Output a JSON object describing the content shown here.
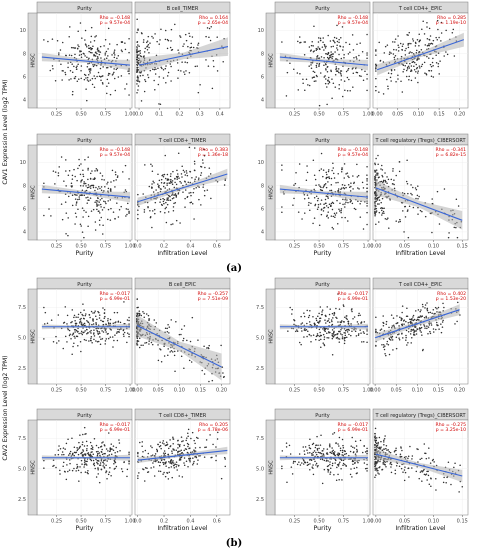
{
  "figure": {
    "label_a": "(a)",
    "label_b": "(b)"
  },
  "chart_data": [
    {
      "type": "scatter",
      "group": "a",
      "gene": "CAV1",
      "row": 0,
      "col": 0,
      "side_label": "HNSC",
      "ylabel": "CAV1 Expression Level (log2 TPM)",
      "xlabel": "",
      "yticks": [
        4,
        6,
        8,
        10
      ],
      "ylim": [
        3.3,
        11.5
      ],
      "left": {
        "strip": "Purity",
        "rho": "Rho = -0.148",
        "p": "p = 9.57e-04",
        "xticks": [
          "0.25",
          "0.50",
          "0.75",
          "1.00"
        ],
        "xlim": [
          0.05,
          1.02
        ],
        "fit": [
          [
            0.1,
            7.7
          ],
          [
            1.0,
            7.0
          ]
        ],
        "band": 0.45,
        "pts": [],
        "n": 240,
        "xdist": "purity",
        "ysd": 1.3
      },
      "right": {
        "strip": "B cell_TIMER",
        "rho": "Rho = 0.164",
        "p": "p = 2.65e-04",
        "xticks": [
          "0.0",
          "0.1",
          "0.2",
          "0.3",
          "0.4"
        ],
        "xlim": [
          -0.02,
          0.45
        ],
        "fit": [
          [
            0.0,
            7.0
          ],
          [
            0.44,
            8.6
          ]
        ],
        "band": 0.8,
        "n": 240,
        "xdist": "left",
        "ysd": 1.3
      }
    },
    {
      "type": "scatter",
      "group": "a",
      "gene": "CAV1",
      "row": 0,
      "col": 1,
      "side_label": "HNSC",
      "ylabel": "",
      "xlabel": "",
      "yticks": [
        4,
        6,
        8,
        10
      ],
      "ylim": [
        3.3,
        11.5
      ],
      "left": {
        "strip": "Purity",
        "rho": "Rho = -0.148",
        "p": "p = 9.57e-04",
        "xticks": [
          "0.25",
          "0.50",
          "0.75",
          "1.00"
        ],
        "xlim": [
          0.05,
          1.02
        ],
        "fit": [
          [
            0.1,
            7.7
          ],
          [
            1.0,
            7.0
          ]
        ],
        "band": 0.45,
        "n": 240,
        "xdist": "purity",
        "ysd": 1.3
      },
      "right": {
        "strip": "T cell CD4+_EPIC",
        "rho": "Rho = 0.285",
        "p": "p = 1.19e-10",
        "xticks": [
          "0.00",
          "0.05",
          "0.10",
          "0.15",
          "0.20"
        ],
        "xlim": [
          -0.01,
          0.22
        ],
        "fit": [
          [
            0.0,
            6.6
          ],
          [
            0.21,
            9.2
          ]
        ],
        "band": 0.6,
        "n": 240,
        "xdist": "mid",
        "ysd": 1.2
      }
    },
    {
      "type": "scatter",
      "group": "a",
      "gene": "CAV1",
      "row": 1,
      "col": 0,
      "side_label": "HNSC",
      "ylabel": "CAV1 Expression Level (log2 TPM)",
      "xlabel": "Infiltration Level",
      "yticks": [
        4,
        6,
        8,
        10
      ],
      "ylim": [
        3.3,
        11.5
      ],
      "left": {
        "strip": "Purity",
        "rho": "Rho = -0.148",
        "p": "p = 9.57e-04",
        "xticks": [
          "0.25",
          "0.50",
          "0.75",
          "1.00"
        ],
        "xlim": [
          0.05,
          1.02
        ],
        "fit": [
          [
            0.1,
            7.7
          ],
          [
            1.0,
            7.0
          ]
        ],
        "band": 0.45,
        "n": 240,
        "xdist": "purity",
        "ysd": 1.3,
        "xlabel": "Purity"
      },
      "right": {
        "strip": "T cell CD8+_TIMER",
        "rho": "Rho = 0.383",
        "p": "p = 1.36e-18",
        "xticks": [
          "0.0",
          "0.2",
          "0.4",
          "0.6"
        ],
        "xlim": [
          -0.02,
          0.7
        ],
        "fit": [
          [
            0.0,
            6.6
          ],
          [
            0.68,
            9.0
          ]
        ],
        "band": 0.45,
        "n": 240,
        "xdist": "mid",
        "ysd": 1.2
      }
    },
    {
      "type": "scatter",
      "group": "a",
      "gene": "CAV1",
      "row": 1,
      "col": 1,
      "side_label": "HNSC",
      "ylabel": "",
      "xlabel": "Infiltration Level",
      "yticks": [
        4,
        6,
        8,
        10
      ],
      "ylim": [
        3.3,
        11.5
      ],
      "left": {
        "strip": "Purity",
        "rho": "Rho = -0.148",
        "p": "p = 9.57e-04",
        "xticks": [
          "0.25",
          "0.50",
          "0.75",
          "1.00"
        ],
        "xlim": [
          0.05,
          1.02
        ],
        "fit": [
          [
            0.1,
            7.7
          ],
          [
            1.0,
            7.0
          ]
        ],
        "band": 0.45,
        "n": 240,
        "xdist": "purity",
        "ysd": 1.3,
        "xlabel": "Purity"
      },
      "right": {
        "strip": "T cell regulatory (Tregs)_CIBERSORT",
        "rho": "Rho = -0.341",
        "p": "p = 6.82e-15",
        "xticks": [
          "0.00",
          "0.05",
          "0.10",
          "0.15"
        ],
        "xlim": [
          -0.005,
          0.16
        ],
        "fit": [
          [
            0.0,
            7.8
          ],
          [
            0.15,
            5.0
          ]
        ],
        "band": 0.8,
        "n": 240,
        "xdist": "left",
        "ysd": 1.2
      }
    },
    {
      "type": "scatter",
      "group": "b",
      "gene": "CAV2",
      "row": 0,
      "col": 0,
      "side_label": "HNSC",
      "ylabel": "CAV2 Expression Level (log2 TPM)",
      "xlabel": "",
      "yticks": [
        2.5,
        5.0,
        7.5
      ],
      "ylim": [
        1.2,
        9.0
      ],
      "left": {
        "strip": "Purity",
        "rho": "Rho = -0.017",
        "p": "p = 6.99e-01",
        "xticks": [
          "0.25",
          "0.50",
          "0.75",
          "1.00"
        ],
        "xlim": [
          0.05,
          1.02
        ],
        "fit": [
          [
            0.1,
            5.9
          ],
          [
            1.0,
            5.9
          ]
        ],
        "band": 0.25,
        "n": 260,
        "xdist": "purity",
        "ysd": 0.75
      },
      "right": {
        "strip": "B cell_EPIC",
        "rho": "Rho = -0.257",
        "p": "p = 7.51e-09",
        "xticks": [
          "0.00",
          "0.05",
          "0.10",
          "0.15",
          "0.20"
        ],
        "xlim": [
          -0.005,
          0.22
        ],
        "fit": [
          [
            0.0,
            6.0
          ],
          [
            0.2,
            2.6
          ]
        ],
        "band": 1.1,
        "n": 260,
        "xdist": "left",
        "ysd": 0.75
      }
    },
    {
      "type": "scatter",
      "group": "b",
      "gene": "CAV2",
      "row": 0,
      "col": 1,
      "side_label": "HNSC",
      "ylabel": "",
      "xlabel": "",
      "yticks": [
        2.5,
        5.0,
        7.5
      ],
      "ylim": [
        1.2,
        9.0
      ],
      "left": {
        "strip": "Purity",
        "rho": "Rho = -0.017",
        "p": "p = 6.99e-01",
        "xticks": [
          "0.25",
          "0.50",
          "0.75",
          "1.00"
        ],
        "xlim": [
          0.05,
          1.02
        ],
        "fit": [
          [
            0.1,
            5.9
          ],
          [
            1.0,
            5.9
          ]
        ],
        "band": 0.25,
        "n": 260,
        "xdist": "purity",
        "ysd": 0.75
      },
      "right": {
        "strip": "T cell CD4+_EPIC",
        "rho": "Rho = 0.402",
        "p": "p = 1.53e-20",
        "xticks": [
          "0.00",
          "0.05",
          "0.10",
          "0.15",
          "0.20"
        ],
        "xlim": [
          -0.005,
          0.22
        ],
        "fit": [
          [
            0.0,
            5.0
          ],
          [
            0.2,
            7.3
          ]
        ],
        "band": 0.45,
        "n": 260,
        "xdist": "mid",
        "ysd": 0.75
      }
    },
    {
      "type": "scatter",
      "group": "b",
      "gene": "CAV2",
      "row": 1,
      "col": 0,
      "side_label": "HNSC",
      "ylabel": "CAV2 Expression Level (log2 TPM)",
      "xlabel": "Infiltration Level",
      "yticks": [
        2.5,
        5.0,
        7.5
      ],
      "ylim": [
        1.2,
        9.0
      ],
      "left": {
        "strip": "Purity",
        "rho": "Rho = -0.017",
        "p": "p = 6.99e-01",
        "xticks": [
          "0.25",
          "0.50",
          "0.75",
          "1.00"
        ],
        "xlim": [
          0.05,
          1.02
        ],
        "fit": [
          [
            0.1,
            5.9
          ],
          [
            1.0,
            5.9
          ]
        ],
        "band": 0.25,
        "n": 260,
        "xdist": "purity",
        "ysd": 0.75,
        "xlabel": "Purity"
      },
      "right": {
        "strip": "T cell CD8+_TIMER",
        "rho": "Rho = 0.205",
        "p": "p = 4.78e-06",
        "xticks": [
          "0.0",
          "0.2",
          "0.4",
          "0.6"
        ],
        "xlim": [
          -0.02,
          0.7
        ],
        "fit": [
          [
            0.0,
            5.7
          ],
          [
            0.68,
            6.5
          ]
        ],
        "band": 0.3,
        "n": 260,
        "xdist": "mid",
        "ysd": 0.75
      }
    },
    {
      "type": "scatter",
      "group": "b",
      "gene": "CAV2",
      "row": 1,
      "col": 1,
      "side_label": "HNSC",
      "ylabel": "",
      "xlabel": "Infiltration Level",
      "yticks": [
        2.5,
        5.0,
        7.5
      ],
      "ylim": [
        1.2,
        9.0
      ],
      "left": {
        "strip": "Purity",
        "rho": "Rho = -0.017",
        "p": "p = 6.99e-01",
        "xticks": [
          "0.25",
          "0.50",
          "0.75",
          "1.00"
        ],
        "xlim": [
          0.05,
          1.02
        ],
        "fit": [
          [
            0.1,
            5.9
          ],
          [
            1.0,
            5.9
          ]
        ],
        "band": 0.25,
        "n": 260,
        "xdist": "purity",
        "ysd": 0.75,
        "xlabel": "Purity"
      },
      "right": {
        "strip": "T cell regulatory (Tregs)_CIBERSORT",
        "rho": "Rho = -0.275",
        "p": "p = 3.25e-10",
        "xticks": [
          "0.00",
          "0.05",
          "0.10",
          "0.15"
        ],
        "xlim": [
          -0.005,
          0.16
        ],
        "fit": [
          [
            0.0,
            6.2
          ],
          [
            0.15,
            4.4
          ]
        ],
        "band": 0.5,
        "n": 260,
        "xdist": "left",
        "ysd": 0.75
      }
    }
  ]
}
